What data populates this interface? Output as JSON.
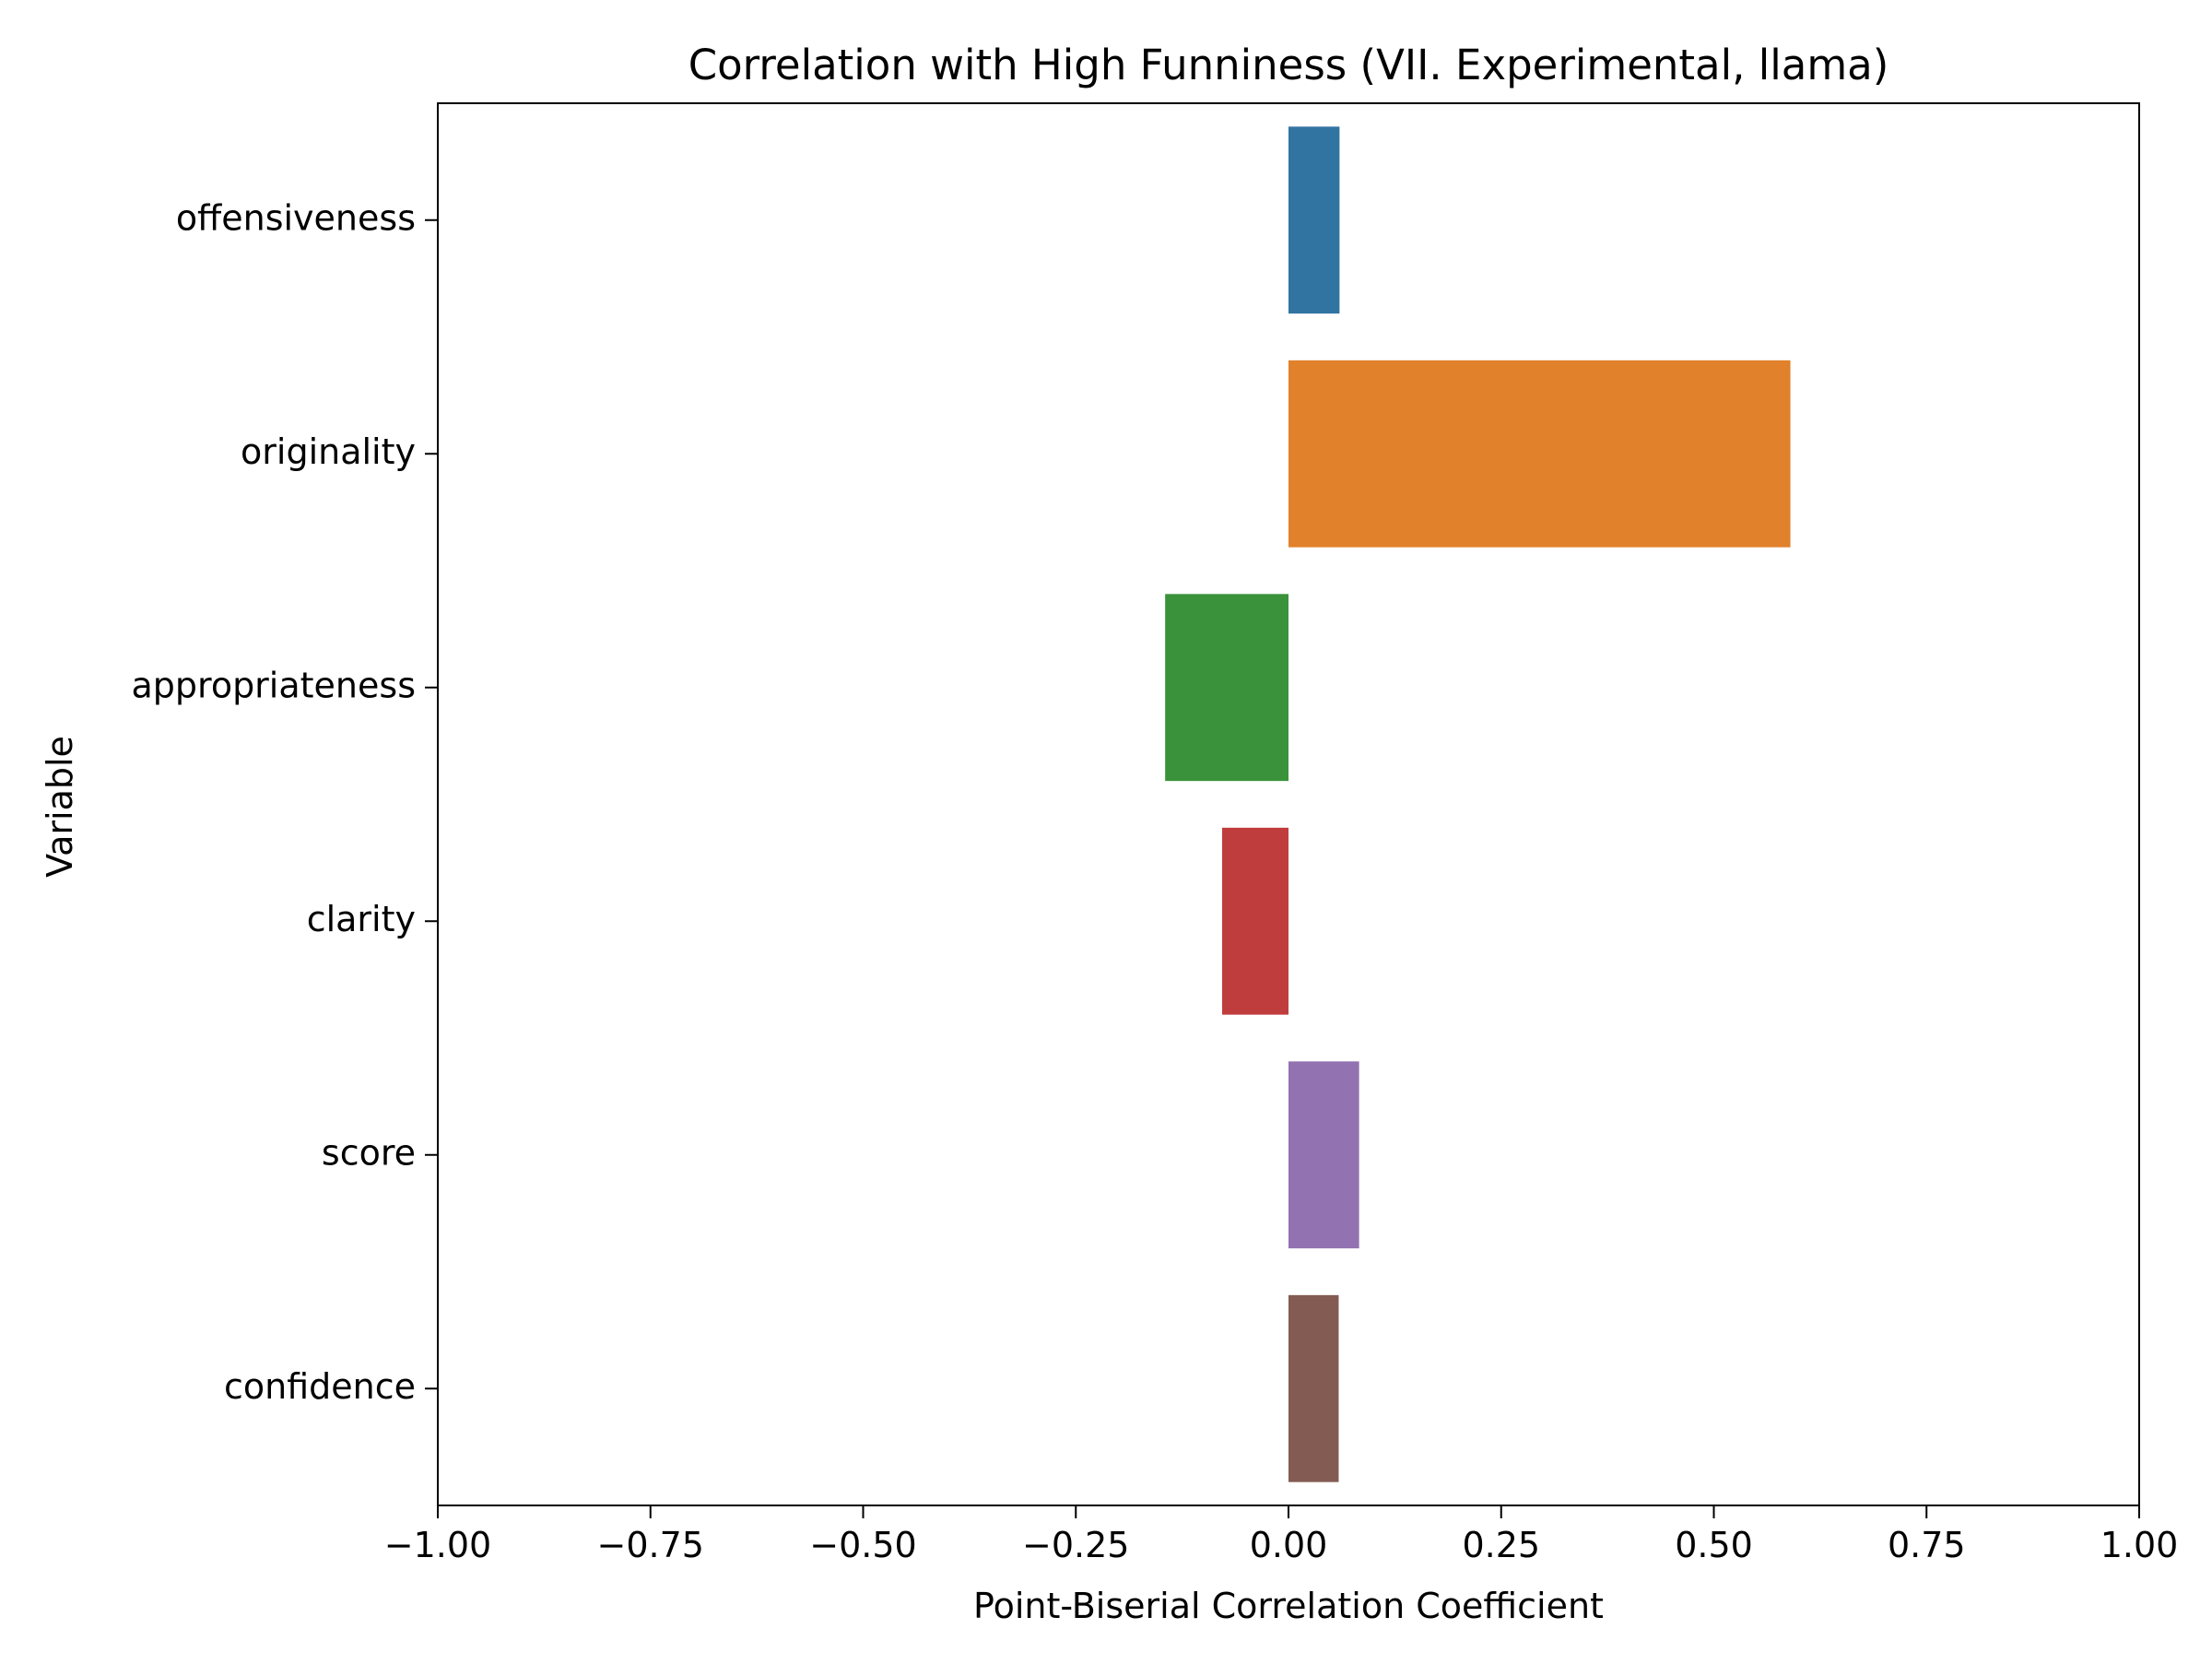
{
  "chart_data": {
    "type": "bar",
    "orientation": "horizontal",
    "title": "Correlation with High Funniness (VII. Experimental, llama)",
    "xlabel": "Point-Biserial Correlation Coefficient",
    "ylabel": "Variable",
    "xlim": [
      -1.0,
      1.0
    ],
    "xticks": [
      -1.0,
      -0.75,
      -0.5,
      -0.25,
      0.0,
      0.25,
      0.5,
      0.75,
      1.0
    ],
    "xtick_labels": [
      "−1.00",
      "−0.75",
      "−0.50",
      "−0.25",
      "0.00",
      "0.25",
      "0.50",
      "0.75",
      "1.00"
    ],
    "categories": [
      "offensiveness",
      "originality",
      "appropriateness",
      "clarity",
      "score",
      "confidence"
    ],
    "values": [
      0.06,
      0.59,
      -0.145,
      -0.078,
      0.083,
      0.059
    ],
    "colors": [
      "#3274a1",
      "#e1812c",
      "#3a923a",
      "#c03d3e",
      "#9372b2",
      "#845b53"
    ],
    "grid": false,
    "legend": "none"
  }
}
